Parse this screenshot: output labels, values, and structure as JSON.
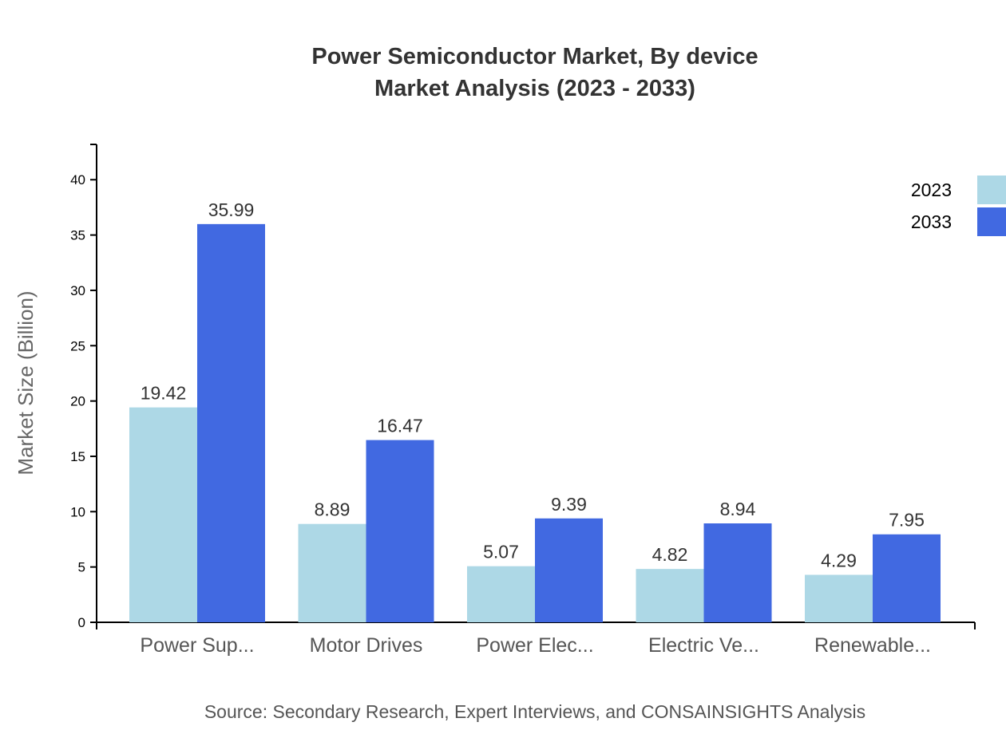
{
  "chart_data": {
    "type": "bar",
    "title_line1": "Power Semiconductor Market, By device",
    "title_line2": "Market Analysis (2023 - 2033)",
    "xlabel": "",
    "ylabel": "Market Size (Billion)",
    "ylim": [
      0,
      43.19
    ],
    "yticks": [
      0,
      5,
      10,
      15,
      20,
      25,
      30,
      35,
      40
    ],
    "categories": [
      "Power Sup...",
      "Motor Drives",
      "Power Elec...",
      "Electric Ve...",
      "Renewable..."
    ],
    "series": [
      {
        "name": "2023",
        "color": "#ADD8E6",
        "values": [
          19.42,
          8.89,
          5.07,
          4.82,
          4.29
        ]
      },
      {
        "name": "2033",
        "color": "#4169E1",
        "values": [
          35.99,
          16.47,
          9.39,
          8.94,
          7.95
        ]
      }
    ],
    "legend_position": "top-right",
    "grid": false,
    "source": "Source: Secondary Research, Expert Interviews, and CONSAINSIGHTS Analysis"
  }
}
